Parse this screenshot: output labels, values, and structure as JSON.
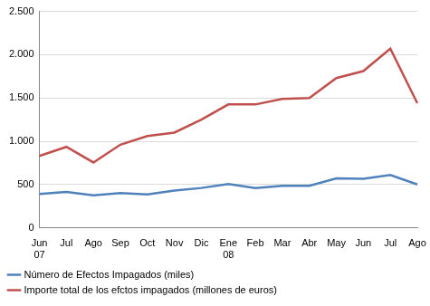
{
  "chart_data": {
    "type": "line",
    "categories": [
      "Jun 07",
      "Jul",
      "Ago",
      "Sep",
      "Oct",
      "Nov",
      "Dic",
      "Ene 08",
      "Feb",
      "Mar",
      "Abr",
      "May",
      "Jun",
      "Jul",
      "Ago"
    ],
    "series": [
      {
        "name": "Número de Efectos Impagados (miles)",
        "color": "#4f81bd",
        "values": [
          390,
          415,
          375,
          400,
          385,
          430,
          460,
          505,
          460,
          485,
          485,
          570,
          565,
          610,
          500
        ]
      },
      {
        "name": "Importe total de los efctos impagados (millones de euros)",
        "color": "#c0504d",
        "values": [
          830,
          935,
          755,
          960,
          1060,
          1100,
          1250,
          1425,
          1425,
          1490,
          1500,
          1730,
          1810,
          2070,
          1440
        ]
      }
    ],
    "ylim": [
      0,
      2500
    ],
    "yticks": [
      0,
      500,
      {
        "value": 1000,
        "label": "1.000"
      },
      {
        "value": 1500,
        "label": "1.500"
      },
      {
        "value": 2000,
        "label": "2.000"
      },
      {
        "value": 2500,
        "label": "2.500"
      }
    ],
    "grid": true,
    "legend": "bottom",
    "marker": "none"
  }
}
